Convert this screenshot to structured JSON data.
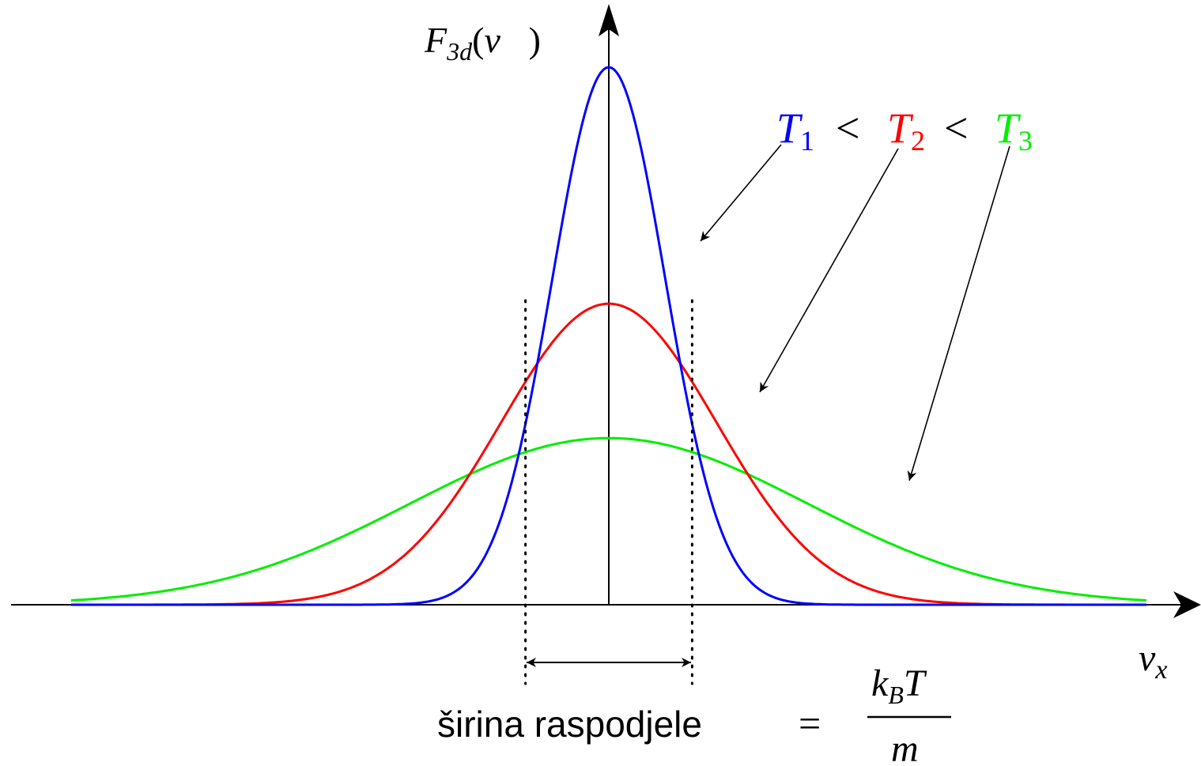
{
  "y_axis_label": {
    "main": "F",
    "sub": "3d",
    "arg": "v⃗",
    "lparen": "(",
    "rparen": ")"
  },
  "x_axis_label": {
    "main": "v",
    "sub": "x"
  },
  "legend": {
    "t1": {
      "letter": "T",
      "sub": "1",
      "color": "#0000ff"
    },
    "t2": {
      "letter": "T",
      "sub": "2",
      "color": "#ff0000"
    },
    "t3": {
      "letter": "T",
      "sub": "3",
      "color": "#00ee00"
    },
    "lt1": "<",
    "lt2": "<"
  },
  "width_label": {
    "text": "širina raspodjele",
    "equals": "=",
    "numerator_k": "k",
    "numerator_sub": "B",
    "numerator_T": "T",
    "denominator": "m"
  },
  "chart_data": {
    "type": "line",
    "x_range": [
      -1,
      1
    ],
    "curves": [
      {
        "temperature": "T1",
        "color": "#0000ff",
        "peak": 1.0,
        "sigma": 0.105
      },
      {
        "temperature": "T2",
        "color": "#ff0000",
        "peak": 0.56,
        "sigma": 0.2
      },
      {
        "temperature": "T3",
        "color": "#00ee00",
        "peak": 0.31,
        "sigma": 0.37
      }
    ],
    "width_markers": [
      -0.155,
      0.155
    ]
  }
}
